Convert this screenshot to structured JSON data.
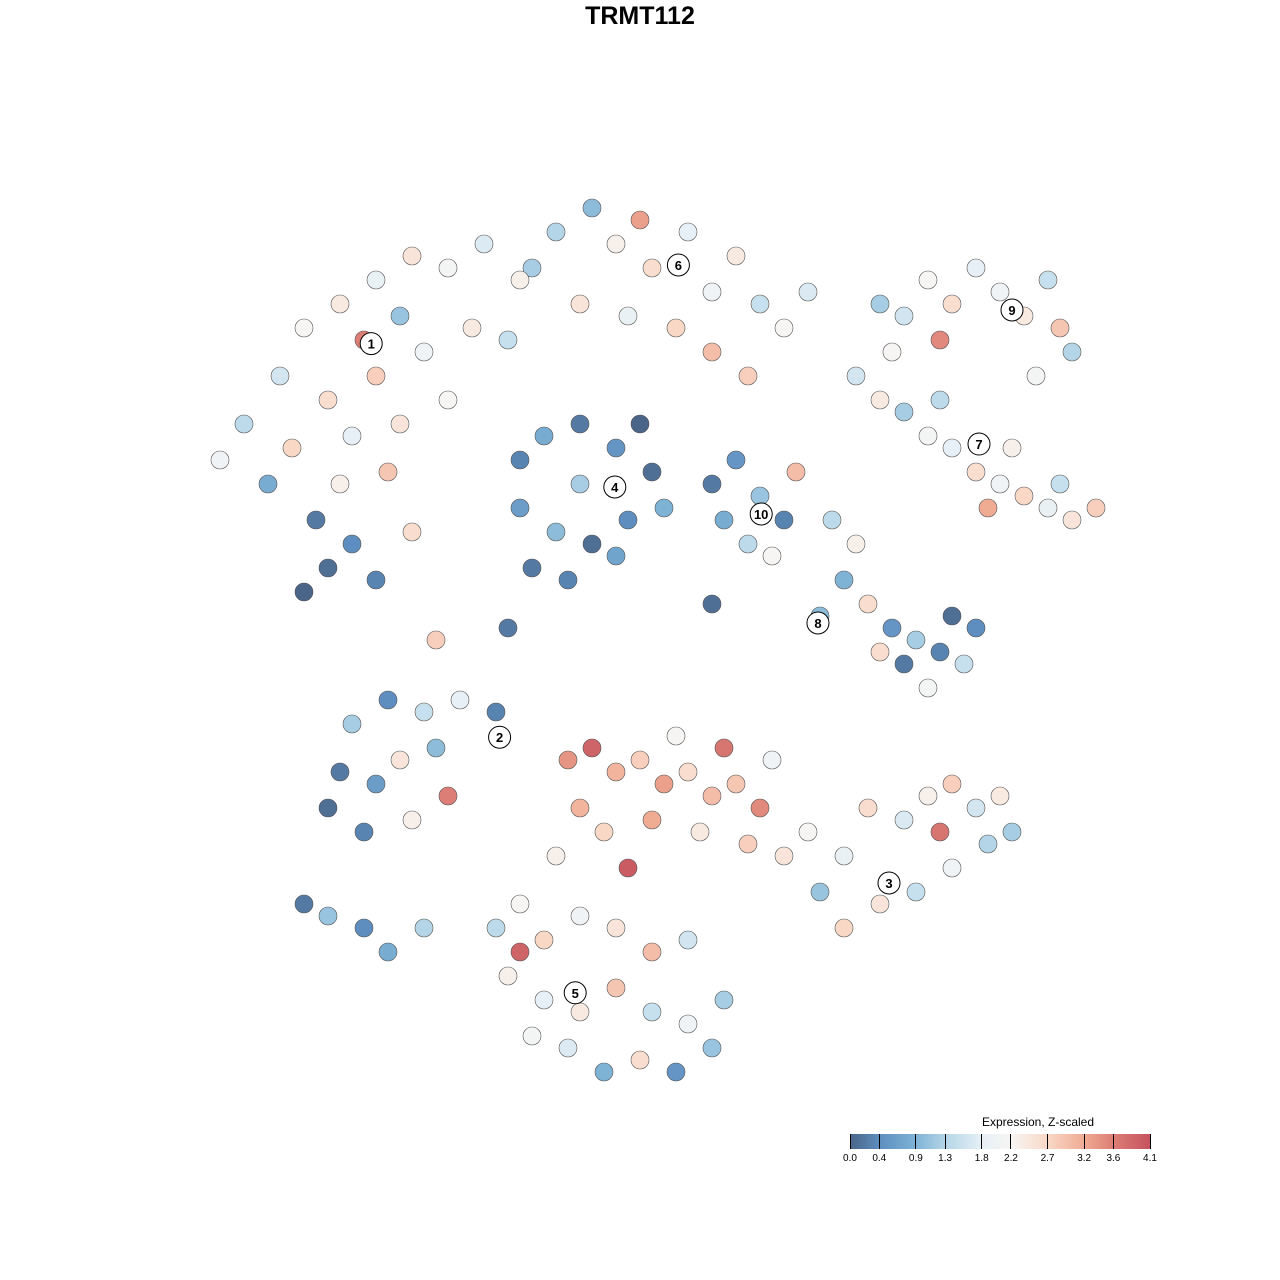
{
  "chart_data": {
    "type": "scatter",
    "title": "TRMT112",
    "xlabel": "",
    "ylabel": "",
    "grid": false,
    "legend": {
      "title": "Expression, Z-scaled",
      "placement": "bottom-right",
      "ticks": [
        0.0,
        0.4,
        0.9,
        1.3,
        1.8,
        2.2,
        2.7,
        3.2,
        3.6,
        4.1
      ],
      "tick_labels": [
        "0.0",
        "0.4",
        "0.9",
        "1.3",
        "1.8",
        "2.2",
        "2.7",
        "3.2",
        "3.6",
        "4.1"
      ],
      "range": [
        0,
        4.1
      ]
    },
    "color_stops": [
      {
        "v": 0.0,
        "c": "#4a6587"
      },
      {
        "v": 0.4,
        "c": "#5d8ebf"
      },
      {
        "v": 0.9,
        "c": "#7fb3d6"
      },
      {
        "v": 1.3,
        "c": "#b3d5e7"
      },
      {
        "v": 1.8,
        "c": "#e6f0f6"
      },
      {
        "v": 2.2,
        "c": "#f7f5f3"
      },
      {
        "v": 2.7,
        "c": "#f9d8c6"
      },
      {
        "v": 3.2,
        "c": "#f0ab93"
      },
      {
        "v": 3.6,
        "c": "#dc7e75"
      },
      {
        "v": 4.1,
        "c": "#c5525f"
      }
    ],
    "cluster_labels": [
      {
        "label": "1",
        "x": -22.4,
        "y": 24.7
      },
      {
        "label": "2",
        "x": -11.7,
        "y": -8.1
      },
      {
        "label": "3",
        "x": 20.75,
        "y": -20.25
      },
      {
        "label": "4",
        "x": -2.1,
        "y": 12.75
      },
      {
        "label": "5",
        "x": -5.4,
        "y": -29.4
      },
      {
        "label": "6",
        "x": 3.2,
        "y": 31.25
      },
      {
        "label": "7",
        "x": 28.25,
        "y": 16.33
      },
      {
        "label": "8",
        "x": 14.83,
        "y": 1.42
      },
      {
        "label": "9",
        "x": 31,
        "y": 27.5
      },
      {
        "label": "10",
        "x": 10.1,
        "y": 10.5
      }
    ],
    "points_columns": [
      "x",
      "y",
      "expression"
    ],
    "points": [
      [
        -30,
        22,
        1.6
      ],
      [
        -28,
        26,
        2.2
      ],
      [
        -25,
        28,
        2.4
      ],
      [
        -22,
        30,
        1.9
      ],
      [
        -19,
        32,
        2.5
      ],
      [
        -16,
        31,
        2.1
      ],
      [
        -13,
        33,
        1.7
      ],
      [
        -10,
        30,
        2.3
      ],
      [
        -26,
        20,
        2.6
      ],
      [
        -22,
        22,
        2.8
      ],
      [
        -18,
        24,
        2.0
      ],
      [
        -14,
        26,
        2.4
      ],
      [
        -11,
        25,
        1.5
      ],
      [
        -24,
        17,
        1.8
      ],
      [
        -20,
        18,
        2.5
      ],
      [
        -16,
        20,
        2.2
      ],
      [
        -33,
        18,
        1.4
      ],
      [
        -35,
        15,
        2.0
      ],
      [
        -29,
        16,
        2.7
      ],
      [
        -25,
        13,
        2.3
      ],
      [
        -21,
        14,
        2.9
      ],
      [
        -27,
        10,
        0.2
      ],
      [
        -24,
        8,
        0.4
      ],
      [
        -26,
        6,
        0.1
      ],
      [
        -22,
        5,
        0.3
      ],
      [
        -28,
        4,
        0.0
      ],
      [
        -19,
        9,
        2.6
      ],
      [
        -31,
        13,
        0.8
      ],
      [
        -23,
        25,
        3.6
      ],
      [
        -20,
        27,
        1.1
      ],
      [
        -7,
        34,
        1.3
      ],
      [
        -4,
        36,
        1.0
      ],
      [
        -2,
        33,
        2.3
      ],
      [
        1,
        31,
        2.6
      ],
      [
        4,
        34,
        1.8
      ],
      [
        6,
        29,
        2.0
      ],
      [
        8,
        32,
        2.4
      ],
      [
        10,
        28,
        1.5
      ],
      [
        12,
        26,
        2.2
      ],
      [
        14,
        29,
        1.7
      ],
      [
        -5,
        28,
        2.5
      ],
      [
        -1,
        27,
        1.9
      ],
      [
        3,
        26,
        2.7
      ],
      [
        6,
        24,
        3.0
      ],
      [
        9,
        22,
        2.8
      ],
      [
        0,
        35,
        3.3
      ],
      [
        -9,
        31,
        1.2
      ],
      [
        -10,
        15,
        0.3
      ],
      [
        -8,
        17,
        0.8
      ],
      [
        -5,
        18,
        0.2
      ],
      [
        -2,
        16,
        0.5
      ],
      [
        1,
        14,
        0.1
      ],
      [
        2,
        11,
        0.9
      ],
      [
        -1,
        10,
        0.4
      ],
      [
        -4,
        8,
        0.1
      ],
      [
        -7,
        9,
        1.0
      ],
      [
        -10,
        11,
        0.6
      ],
      [
        -9,
        6,
        0.2
      ],
      [
        -5,
        13,
        1.2
      ],
      [
        -2,
        7,
        0.7
      ],
      [
        0,
        18,
        0.0
      ],
      [
        -6,
        5,
        0.3
      ],
      [
        6,
        13,
        0.2
      ],
      [
        8,
        15,
        0.5
      ],
      [
        10,
        12,
        1.1
      ],
      [
        12,
        10,
        0.3
      ],
      [
        9,
        8,
        1.4
      ],
      [
        11,
        7,
        2.2
      ],
      [
        7,
        10,
        0.8
      ],
      [
        13,
        14,
        3.0
      ],
      [
        18,
        22,
        1.6
      ],
      [
        20,
        20,
        2.4
      ],
      [
        22,
        19,
        1.2
      ],
      [
        24,
        17,
        2.1
      ],
      [
        26,
        16,
        1.8
      ],
      [
        28,
        14,
        2.6
      ],
      [
        30,
        13,
        2.0
      ],
      [
        32,
        12,
        2.7
      ],
      [
        34,
        11,
        1.9
      ],
      [
        36,
        10,
        2.5
      ],
      [
        38,
        11,
        2.8
      ],
      [
        35,
        13,
        1.5
      ],
      [
        31,
        16,
        2.3
      ],
      [
        25,
        20,
        1.4
      ],
      [
        21,
        24,
        2.2
      ],
      [
        29,
        11,
        3.2
      ],
      [
        20,
        28,
        1.2
      ],
      [
        22,
        27,
        1.6
      ],
      [
        24,
        30,
        2.2
      ],
      [
        26,
        28,
        2.6
      ],
      [
        28,
        31,
        1.8
      ],
      [
        30,
        29,
        2.0
      ],
      [
        32,
        27,
        2.4
      ],
      [
        34,
        30,
        1.5
      ],
      [
        35,
        26,
        2.9
      ],
      [
        33,
        22,
        2.1
      ],
      [
        36,
        24,
        1.3
      ],
      [
        25,
        25,
        3.5
      ],
      [
        16,
        10,
        1.4
      ],
      [
        18,
        8,
        2.3
      ],
      [
        17,
        5,
        0.9
      ],
      [
        19,
        3,
        2.6
      ],
      [
        21,
        1,
        0.5
      ],
      [
        23,
        0,
        1.2
      ],
      [
        25,
        -1,
        0.3
      ],
      [
        27,
        -2,
        1.5
      ],
      [
        24,
        -4,
        2.1
      ],
      [
        22,
        -2,
        0.2
      ],
      [
        20,
        -1,
        2.6
      ],
      [
        26,
        2,
        0.1
      ],
      [
        28,
        1,
        0.4
      ],
      [
        15,
        2,
        1.0
      ],
      [
        -24,
        -7,
        1.2
      ],
      [
        -21,
        -5,
        0.4
      ],
      [
        -18,
        -6,
        1.5
      ],
      [
        -15,
        -5,
        1.8
      ],
      [
        -12,
        -6,
        0.3
      ],
      [
        -25,
        -11,
        0.2
      ],
      [
        -22,
        -12,
        0.6
      ],
      [
        -20,
        -10,
        2.5
      ],
      [
        -17,
        -9,
        1.0
      ],
      [
        -26,
        -14,
        0.1
      ],
      [
        -23,
        -16,
        0.3
      ],
      [
        -19,
        -15,
        2.3
      ],
      [
        -16,
        -13,
        3.6
      ],
      [
        -28,
        -22,
        0.2
      ],
      [
        -26,
        -23,
        1.1
      ],
      [
        -23,
        -24,
        0.4
      ],
      [
        -21,
        -26,
        0.8
      ],
      [
        -18,
        -24,
        1.3
      ],
      [
        -6,
        -10,
        3.4
      ],
      [
        -4,
        -9,
        3.9
      ],
      [
        -2,
        -11,
        3.1
      ],
      [
        0,
        -10,
        2.8
      ],
      [
        2,
        -12,
        3.3
      ],
      [
        4,
        -11,
        2.6
      ],
      [
        6,
        -13,
        3.0
      ],
      [
        8,
        -12,
        2.9
      ],
      [
        10,
        -14,
        3.5
      ],
      [
        -5,
        -14,
        3.1
      ],
      [
        -3,
        -16,
        2.7
      ],
      [
        1,
        -15,
        3.2
      ],
      [
        5,
        -16,
        2.4
      ],
      [
        9,
        -17,
        2.8
      ],
      [
        12,
        -18,
        2.5
      ],
      [
        3,
        -8,
        2.2
      ],
      [
        7,
        -9,
        3.7
      ],
      [
        -1,
        -19,
        4.0
      ],
      [
        -7,
        -18,
        2.3
      ],
      [
        11,
        -10,
        2.0
      ],
      [
        14,
        -16,
        2.2
      ],
      [
        17,
        -18,
        1.9
      ],
      [
        19,
        -14,
        2.6
      ],
      [
        22,
        -15,
        1.7
      ],
      [
        24,
        -13,
        2.3
      ],
      [
        26,
        -12,
        2.8
      ],
      [
        28,
        -14,
        1.6
      ],
      [
        30,
        -13,
        2.4
      ],
      [
        29,
        -17,
        1.3
      ],
      [
        26,
        -19,
        2.0
      ],
      [
        23,
        -21,
        1.5
      ],
      [
        20,
        -22,
        2.5
      ],
      [
        17,
        -24,
        2.7
      ],
      [
        15,
        -21,
        1.1
      ],
      [
        25,
        -16,
        3.7
      ],
      [
        31,
        -16,
        1.2
      ],
      [
        -12,
        -24,
        1.4
      ],
      [
        -10,
        -22,
        2.2
      ],
      [
        -8,
        -25,
        2.7
      ],
      [
        -5,
        -23,
        2.0
      ],
      [
        -2,
        -24,
        2.5
      ],
      [
        1,
        -26,
        3.0
      ],
      [
        4,
        -25,
        1.6
      ],
      [
        -11,
        -28,
        2.3
      ],
      [
        -8,
        -30,
        1.8
      ],
      [
        -5,
        -31,
        2.4
      ],
      [
        -2,
        -29,
        2.9
      ],
      [
        1,
        -31,
        1.5
      ],
      [
        4,
        -32,
        2.0
      ],
      [
        7,
        -30,
        1.2
      ],
      [
        -6,
        -34,
        1.7
      ],
      [
        -3,
        -36,
        0.9
      ],
      [
        0,
        -35,
        2.6
      ],
      [
        3,
        -36,
        0.5
      ],
      [
        6,
        -34,
        1.1
      ],
      [
        -9,
        -33,
        2.1
      ],
      [
        -10,
        -26,
        3.9
      ],
      [
        -17,
        0,
        2.8
      ],
      [
        -11,
        1,
        0.2
      ],
      [
        6,
        3,
        0.1
      ]
    ]
  }
}
